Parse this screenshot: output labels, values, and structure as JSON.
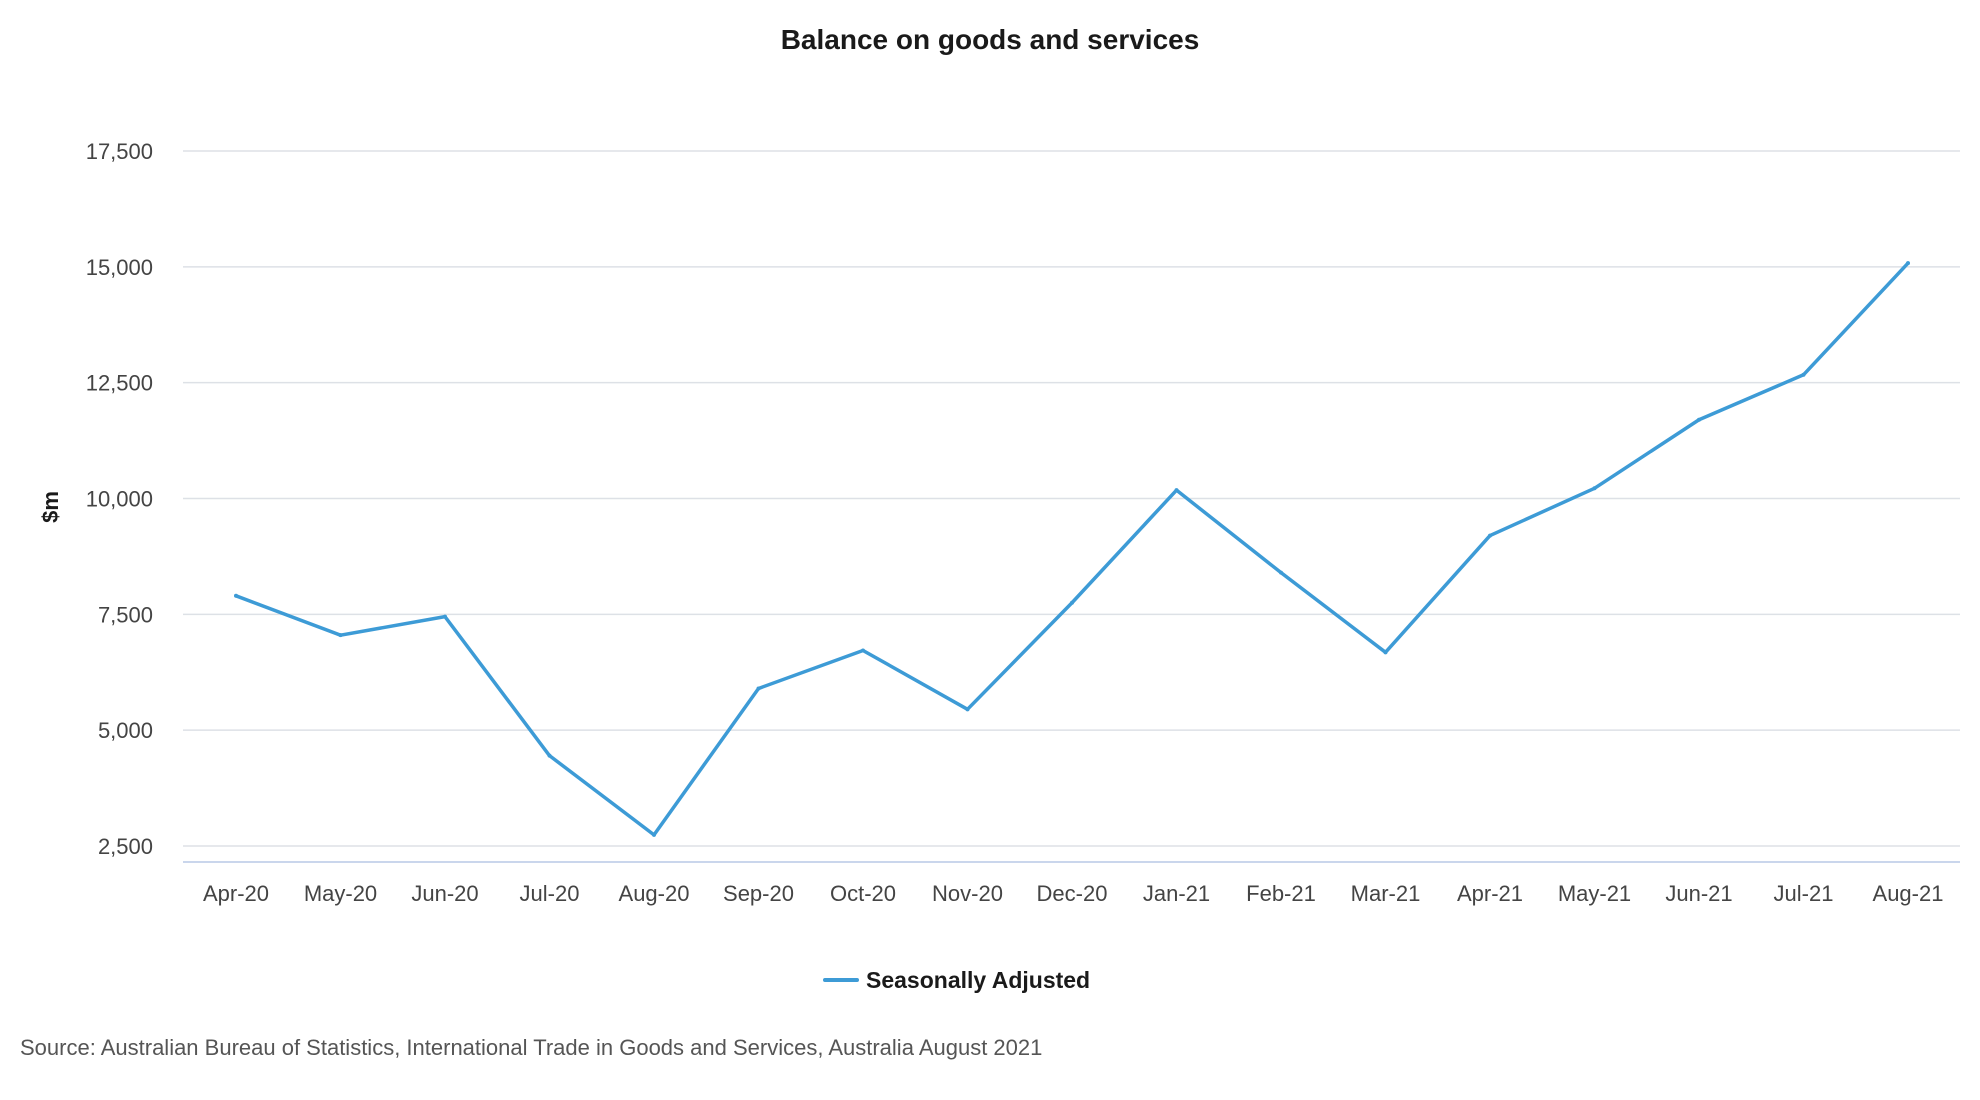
{
  "chart_data": {
    "type": "line",
    "title": "Balance on goods and services",
    "ylabel": "$m",
    "xlabel": "",
    "categories": [
      "Apr-20",
      "May-20",
      "Jun-20",
      "Jul-20",
      "Aug-20",
      "Sep-20",
      "Oct-20",
      "Nov-20",
      "Dec-20",
      "Jan-21",
      "Feb-21",
      "Mar-21",
      "Apr-21",
      "May-21",
      "Jun-21",
      "Jul-21",
      "Aug-21"
    ],
    "series": [
      {
        "name": "Seasonally Adjusted",
        "color": "#3d9bd6",
        "values": [
          7900,
          7050,
          7450,
          4450,
          2740,
          5900,
          6720,
          5450,
          7750,
          10180,
          8400,
          6680,
          9200,
          10220,
          11700,
          12670,
          15080
        ]
      }
    ],
    "ylim": [
      2500,
      17500
    ],
    "yticks": [
      2500,
      5000,
      7500,
      10000,
      12500,
      15000,
      17500
    ],
    "ytick_labels": [
      "2,500",
      "5,000",
      "7,500",
      "10,000",
      "12,500",
      "15,000",
      "17,500"
    ],
    "grid": true,
    "legend_position": "bottom-center",
    "source": "Source: Australian Bureau of Statistics, International Trade in Goods and Services, Australia August 2021"
  }
}
